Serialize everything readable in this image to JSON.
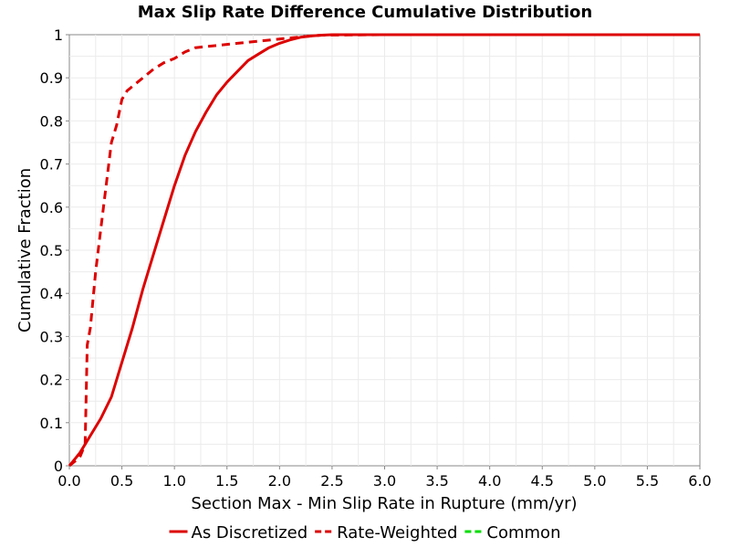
{
  "chart_data": {
    "type": "line",
    "title": "Max Slip Rate Difference Cumulative Distribution",
    "xlabel": "Section Max - Min Slip Rate in Rupture (mm/yr)",
    "ylabel": "Cumulative Fraction",
    "xlim": [
      0,
      6
    ],
    "ylim": [
      0,
      1
    ],
    "x_ticks": [
      "0.0",
      "0.5",
      "1.0",
      "1.5",
      "2.0",
      "2.5",
      "3.0",
      "3.5",
      "4.0",
      "4.5",
      "5.0",
      "5.5",
      "6.0"
    ],
    "y_ticks": [
      "0",
      "0.1",
      "0.2",
      "0.3",
      "0.4",
      "0.5",
      "0.6",
      "0.7",
      "0.8",
      "0.9",
      "1"
    ],
    "grid": true,
    "legend_position": "bottom",
    "series": [
      {
        "name": "As Discretized",
        "color": "#dd0000",
        "dash": "solid",
        "x": [
          0,
          0.05,
          0.1,
          0.15,
          0.2,
          0.25,
          0.3,
          0.4,
          0.5,
          0.6,
          0.7,
          0.8,
          0.9,
          1.0,
          1.1,
          1.2,
          1.3,
          1.4,
          1.5,
          1.6,
          1.7,
          1.8,
          1.9,
          2.0,
          2.1,
          2.2,
          2.3,
          2.4,
          2.5,
          3.0,
          6.0
        ],
        "y": [
          0,
          0.015,
          0.03,
          0.05,
          0.07,
          0.09,
          0.11,
          0.16,
          0.24,
          0.32,
          0.41,
          0.49,
          0.57,
          0.65,
          0.72,
          0.775,
          0.82,
          0.86,
          0.89,
          0.915,
          0.94,
          0.955,
          0.97,
          0.98,
          0.988,
          0.994,
          0.997,
          0.999,
          1.0,
          1.0,
          1.0
        ]
      },
      {
        "name": "Rate-Weighted",
        "color": "#dd0000",
        "dash": "dashed",
        "x": [
          0,
          0.1,
          0.15,
          0.17,
          0.2,
          0.25,
          0.3,
          0.35,
          0.4,
          0.45,
          0.5,
          0.55,
          0.6,
          0.7,
          0.8,
          0.9,
          1.0,
          1.1,
          1.2,
          1.4,
          1.6,
          1.8,
          2.0,
          2.2,
          2.4,
          3.0,
          6.0
        ],
        "y": [
          0,
          0.02,
          0.05,
          0.28,
          0.32,
          0.45,
          0.55,
          0.65,
          0.75,
          0.79,
          0.85,
          0.87,
          0.88,
          0.9,
          0.92,
          0.935,
          0.945,
          0.96,
          0.97,
          0.975,
          0.98,
          0.985,
          0.99,
          0.995,
          0.999,
          1.0,
          1.0
        ]
      },
      {
        "name": "Common",
        "color": "#00dd00",
        "dash": "dashed",
        "x": [],
        "y": []
      }
    ]
  }
}
